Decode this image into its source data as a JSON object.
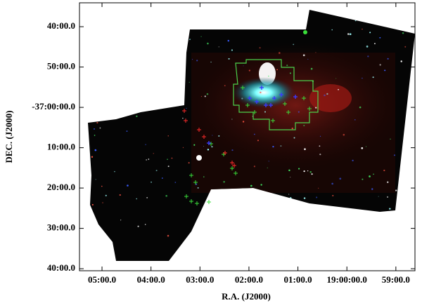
{
  "chart_data": {
    "type": "image",
    "xlabel": "R.A. (J2000)",
    "ylabel": "DEC. (J2000)",
    "xlim": [
      65.46,
      58.61
    ],
    "xticks": [
      {
        "value": 65,
        "label": "05:00.0"
      },
      {
        "value": 64,
        "label": "04:00.0"
      },
      {
        "value": 63,
        "label": "03:00.0"
      },
      {
        "value": 62,
        "label": "02:00.0"
      },
      {
        "value": 61,
        "label": "01:00.0"
      },
      {
        "value": 60,
        "label": "19:00:00.0"
      },
      {
        "value": 59,
        "label": "59:00.0"
      }
    ],
    "ylim": [
      -37.675,
      -36.568
    ],
    "yticks": [
      {
        "value": -36.6667,
        "label": "40:00.0"
      },
      {
        "value": -36.8333,
        "label": "50:00.0"
      },
      {
        "value": -37,
        "label": "-37:00:00.0"
      },
      {
        "value": -37.1667,
        "label": "10:00.0"
      },
      {
        "value": -37.3333,
        "label": "20:00.0"
      },
      {
        "value": -37.5,
        "label": "30:00.0"
      },
      {
        "value": -37.6667,
        "label": "40:00.0"
      }
    ]
  }
}
